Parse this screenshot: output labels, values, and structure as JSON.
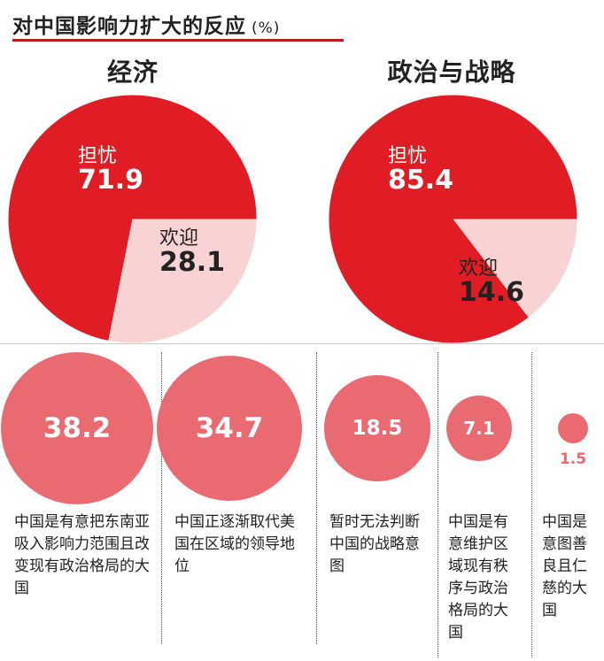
{
  "header": {
    "title": "对中国影响力扩大的反应",
    "unit": "(%)"
  },
  "colors": {
    "dark_red": "#e01c24",
    "pink": "#f9d2d4",
    "bubble": "#ea6a72",
    "rule": "#c2191f"
  },
  "chart_data": [
    {
      "type": "pie",
      "title": "经济",
      "slices": [
        {
          "label": "担忧",
          "value": 71.9
        },
        {
          "label": "欢迎",
          "value": 28.1
        }
      ]
    },
    {
      "type": "pie",
      "title": "政治与战略",
      "slices": [
        {
          "label": "担忧",
          "value": 85.4
        },
        {
          "label": "欢迎",
          "value": 14.6
        }
      ]
    },
    {
      "type": "bubble",
      "items": [
        {
          "label": "中国是有意把东南亚吸入影响力范围且改变现有政治格局的大国",
          "value": 38.2
        },
        {
          "label": "中国正逐渐取代美国在区域的领导地位",
          "value": 34.7
        },
        {
          "label": "暂时无法判断中国的战略意图",
          "value": 18.5
        },
        {
          "label": "中国是有意维护区域现有秩序与政治格局的大国",
          "value": 7.1
        },
        {
          "label": "中国是意图善良且仁慈的大国",
          "value": 1.5
        }
      ]
    }
  ]
}
